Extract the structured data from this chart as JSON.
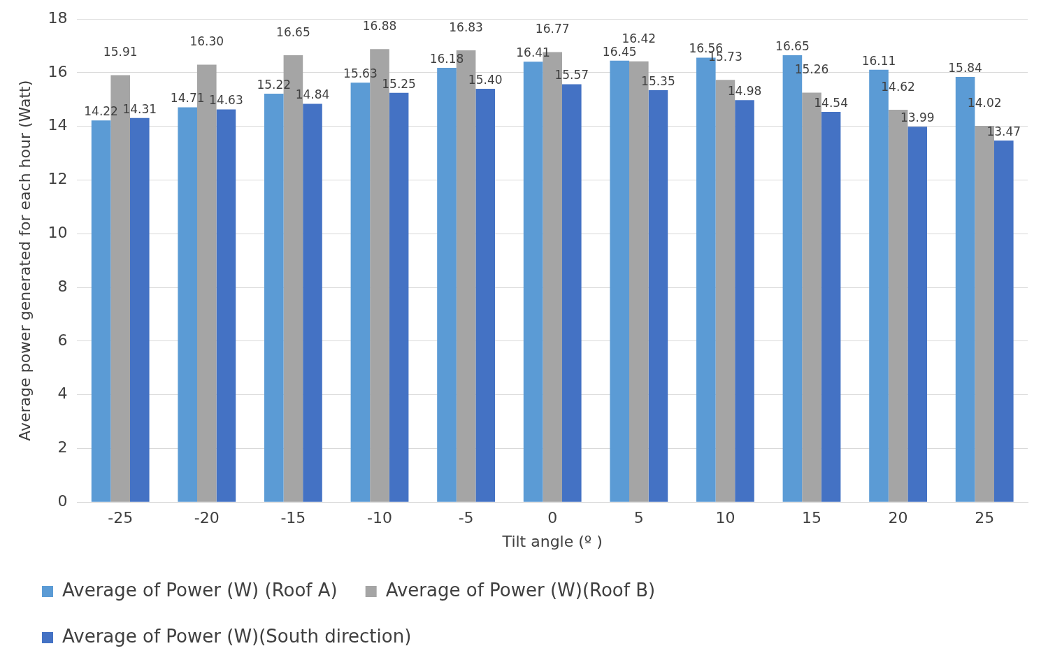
{
  "chart_data": {
    "type": "bar",
    "xlabel": "Tilt angle (º )",
    "ylabel": "Average power generated for each hour (Watt)",
    "categories": [
      "-25",
      "-20",
      "-15",
      "-10",
      "-5",
      "0",
      "5",
      "10",
      "15",
      "20",
      "25"
    ],
    "series": [
      {
        "name": "Average of Power (W) (Roof A)",
        "color": "#5b9bd5",
        "values": [
          14.22,
          14.71,
          15.22,
          15.63,
          16.18,
          16.41,
          16.45,
          16.56,
          16.65,
          16.11,
          15.84
        ],
        "value_labels": [
          "14.22",
          "14.71",
          "15.22",
          "15.63",
          "16.18",
          "16.41",
          "16.45",
          "16.56",
          "16.65",
          "16.11",
          "15.84"
        ]
      },
      {
        "name": "Average of Power (W)(Roof B)",
        "color": "#a5a5a5",
        "values": [
          15.91,
          16.3,
          16.65,
          16.88,
          16.83,
          16.77,
          16.42,
          15.73,
          15.26,
          14.62,
          14.02
        ],
        "value_labels": [
          "15.91",
          "16.30",
          "16.65",
          "16.88",
          "16.83",
          "16.77",
          "16.42",
          "15.73",
          "15.26",
          "14.62",
          "14.02"
        ]
      },
      {
        "name": "Average of Power (W)(South direction)",
        "color": "#4472c4",
        "values": [
          14.31,
          14.63,
          14.84,
          15.25,
          15.4,
          15.57,
          15.35,
          14.98,
          14.54,
          13.99,
          13.47
        ],
        "value_labels": [
          "14.31",
          "14.63",
          "14.84",
          "15.25",
          "15.40",
          "15.57",
          "15.35",
          "14.98",
          "14.54",
          "13.99",
          "13.47"
        ]
      }
    ],
    "ylim": [
      0,
      18
    ],
    "yticks": [
      0,
      2,
      4,
      6,
      8,
      10,
      12,
      14,
      16,
      18
    ],
    "grid": "y",
    "legend": "bottom"
  }
}
